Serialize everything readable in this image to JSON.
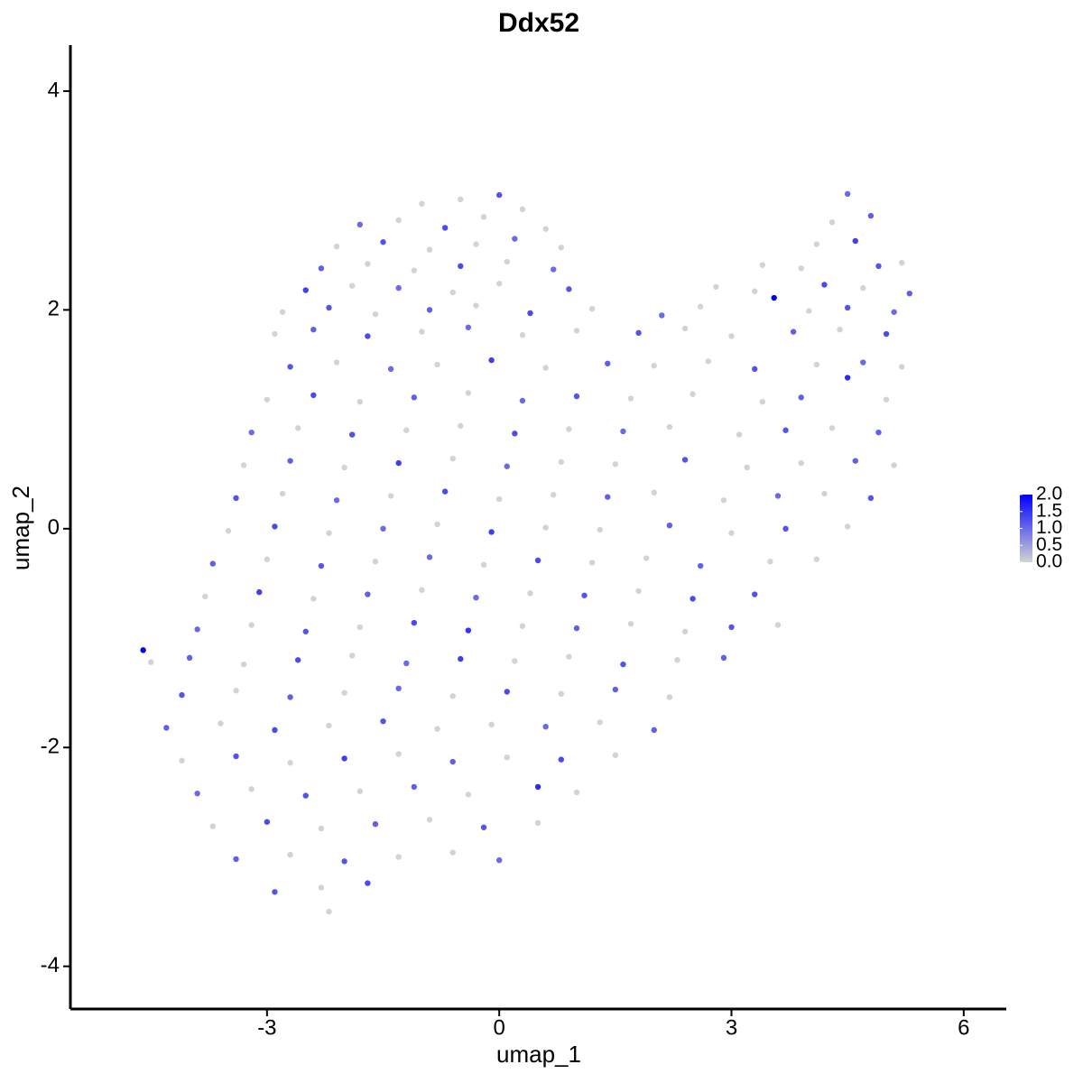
{
  "chart_data": {
    "type": "scatter",
    "title": "Ddx52",
    "x_label": "umap_1",
    "y_label": "umap_2",
    "xlim": [
      -5.54,
      6.55
    ],
    "xticks": [
      -3,
      0,
      3,
      6
    ],
    "ylim": [
      -4.39,
      4.42
    ],
    "yticks": [
      -4,
      -2,
      0,
      2,
      4
    ],
    "low_color": "#d3d3d3",
    "high_color": "#0000ff",
    "colorlim": [
      0,
      2.0
    ],
    "colorticks": [
      {
        "value": 0,
        "label": "0.0"
      },
      0.5,
      {
        "value": 1,
        "label": "1.0"
      },
      1.5,
      {
        "value": 2,
        "label": "2.0"
      }
    ],
    "x": [
      -1.0,
      -0.5,
      0.0,
      0.3,
      4.5,
      -1.8,
      -1.3,
      -0.7,
      -0.2,
      0.6,
      4.3,
      4.8,
      -2.1,
      -1.5,
      -0.9,
      -0.3,
      0.2,
      0.8,
      4.1,
      4.6,
      -2.3,
      -1.7,
      -1.1,
      -0.5,
      0.1,
      0.7,
      3.4,
      3.9,
      4.9,
      5.2,
      -2.5,
      -1.9,
      -1.3,
      -0.6,
      0.0,
      0.9,
      2.8,
      3.3,
      4.2,
      4.7,
      5.3,
      -2.8,
      -2.2,
      -1.6,
      -0.9,
      -0.3,
      0.4,
      1.2,
      2.1,
      2.6,
      4.0,
      4.5,
      5.1,
      3.55,
      -2.9,
      -2.4,
      -1.7,
      -1.0,
      -0.4,
      0.3,
      1.0,
      1.8,
      2.4,
      3.0,
      3.8,
      4.4,
      5.0,
      -2.7,
      -2.1,
      -1.4,
      -0.8,
      -0.1,
      0.6,
      1.4,
      2.0,
      2.7,
      3.3,
      4.1,
      4.7,
      5.2,
      -3.0,
      -2.4,
      -1.8,
      -1.1,
      -0.4,
      0.3,
      1.0,
      1.7,
      2.5,
      3.4,
      3.9,
      4.5,
      5.0,
      -3.2,
      -2.6,
      -1.9,
      -1.2,
      -0.5,
      0.2,
      0.9,
      1.6,
      2.2,
      3.1,
      3.7,
      4.3,
      4.9,
      -3.3,
      -2.7,
      -2.0,
      -1.3,
      -0.6,
      0.1,
      0.8,
      1.5,
      2.4,
      3.2,
      3.9,
      4.6,
      5.1,
      -3.4,
      -2.8,
      -2.1,
      -1.4,
      -0.7,
      0.0,
      0.7,
      1.4,
      2.0,
      2.9,
      3.6,
      4.2,
      4.8,
      -3.5,
      -2.9,
      -2.2,
      -1.5,
      -0.8,
      -0.1,
      0.6,
      1.3,
      2.2,
      3.0,
      3.7,
      4.5,
      -3.7,
      -3.0,
      -2.3,
      -1.6,
      -0.9,
      -0.2,
      0.5,
      1.2,
      1.9,
      2.6,
      3.5,
      4.1,
      -3.8,
      -3.1,
      -2.4,
      -1.7,
      -1.0,
      -0.3,
      0.4,
      1.1,
      1.8,
      2.5,
      3.3,
      -3.9,
      -3.2,
      -2.5,
      -1.8,
      -1.1,
      -0.4,
      0.3,
      1.0,
      1.7,
      2.4,
      3.0,
      3.6,
      -4.5,
      -4.0,
      -3.3,
      -2.6,
      -1.9,
      -1.2,
      -0.5,
      0.2,
      0.9,
      1.6,
      2.3,
      2.9,
      -4.6,
      -4.1,
      -3.4,
      -2.7,
      -2.0,
      -1.3,
      -0.6,
      0.1,
      0.8,
      1.5,
      2.2,
      -4.3,
      -3.6,
      -2.9,
      -2.2,
      -1.5,
      -0.8,
      -0.1,
      0.6,
      1.3,
      2.0,
      -4.1,
      -3.4,
      -2.7,
      -2.0,
      -1.3,
      -0.6,
      0.1,
      0.8,
      1.5,
      -3.9,
      -3.2,
      -2.5,
      -1.8,
      -1.1,
      -0.4,
      0.5,
      1.0,
      -3.7,
      -3.0,
      -2.3,
      -1.6,
      -0.9,
      -0.2,
      0.5,
      -3.4,
      -2.7,
      -2.0,
      -1.3,
      -0.6,
      0.0,
      -2.9,
      -2.3,
      -1.7,
      -2.2
    ],
    "y": [
      2.97,
      3.01,
      3.05,
      2.92,
      3.06,
      2.78,
      2.82,
      2.75,
      2.85,
      2.74,
      2.8,
      2.86,
      2.58,
      2.62,
      2.55,
      2.6,
      2.65,
      2.57,
      2.6,
      2.63,
      2.38,
      2.42,
      2.36,
      2.4,
      2.44,
      2.37,
      2.41,
      2.38,
      2.4,
      2.43,
      2.18,
      2.22,
      2.2,
      2.16,
      2.24,
      2.19,
      2.21,
      2.17,
      2.23,
      2.2,
      2.15,
      1.98,
      2.02,
      1.96,
      2.0,
      2.04,
      1.97,
      2.01,
      1.95,
      2.03,
      1.99,
      2.02,
      1.98,
      2.11,
      1.78,
      1.82,
      1.76,
      1.8,
      1.84,
      1.77,
      1.81,
      1.79,
      1.83,
      1.76,
      1.8,
      1.82,
      1.78,
      1.48,
      1.52,
      1.46,
      1.5,
      1.54,
      1.47,
      1.51,
      1.49,
      1.53,
      1.46,
      1.5,
      1.52,
      1.48,
      1.18,
      1.22,
      1.16,
      1.2,
      1.24,
      1.17,
      1.21,
      1.19,
      1.23,
      1.16,
      1.2,
      1.38,
      1.18,
      0.88,
      0.92,
      0.86,
      0.9,
      0.94,
      0.87,
      0.91,
      0.89,
      0.93,
      0.86,
      0.9,
      0.92,
      0.88,
      0.58,
      0.62,
      0.56,
      0.6,
      0.64,
      0.57,
      0.61,
      0.59,
      0.63,
      0.56,
      0.6,
      0.62,
      0.58,
      0.28,
      0.32,
      0.26,
      0.3,
      0.34,
      0.27,
      0.31,
      0.29,
      0.33,
      0.26,
      0.3,
      0.32,
      0.28,
      -0.02,
      0.02,
      -0.04,
      0.0,
      0.04,
      -0.03,
      0.01,
      -0.01,
      0.03,
      -0.04,
      0.0,
      0.02,
      -0.32,
      -0.28,
      -0.34,
      -0.3,
      -0.26,
      -0.33,
      -0.29,
      -0.31,
      -0.27,
      -0.34,
      -0.3,
      -0.28,
      -0.62,
      -0.58,
      -0.64,
      -0.6,
      -0.56,
      -0.63,
      -0.59,
      -0.61,
      -0.57,
      -0.64,
      -0.6,
      -0.92,
      -0.88,
      -0.94,
      -0.9,
      -0.86,
      -0.93,
      -0.89,
      -0.91,
      -0.87,
      -0.94,
      -0.9,
      -0.88,
      -1.22,
      -1.18,
      -1.24,
      -1.2,
      -1.16,
      -1.23,
      -1.19,
      -1.21,
      -1.17,
      -1.24,
      -1.2,
      -1.18,
      -1.11,
      -1.52,
      -1.48,
      -1.54,
      -1.5,
      -1.46,
      -1.53,
      -1.49,
      -1.51,
      -1.47,
      -1.54,
      -1.82,
      -1.78,
      -1.84,
      -1.8,
      -1.76,
      -1.83,
      -1.79,
      -1.81,
      -1.77,
      -1.84,
      -2.12,
      -2.08,
      -2.14,
      -2.1,
      -2.06,
      -2.13,
      -2.09,
      -2.11,
      -2.07,
      -2.42,
      -2.38,
      -2.44,
      -2.4,
      -2.36,
      -2.43,
      -2.36,
      -2.41,
      -2.72,
      -2.68,
      -2.74,
      -2.7,
      -2.66,
      -2.73,
      -2.69,
      -3.02,
      -2.98,
      -3.04,
      -3.0,
      -2.96,
      -3.03,
      -3.32,
      -3.28,
      -3.24,
      -3.5
    ],
    "expression": [
      0,
      0,
      1.2,
      0,
      1.0,
      1.0,
      0,
      1.3,
      0,
      0,
      0,
      1.1,
      0,
      1.2,
      0,
      0,
      1.0,
      0,
      0,
      1.4,
      1.1,
      0,
      0,
      1.3,
      0,
      1.0,
      0,
      0,
      1.2,
      0,
      1.4,
      0,
      1.0,
      0,
      0,
      1.2,
      0,
      0,
      1.3,
      0,
      1.1,
      0,
      1.2,
      0,
      1.1,
      0,
      1.3,
      0,
      1.0,
      0,
      0,
      1.2,
      1.0,
      2.0,
      0,
      1.1,
      1.3,
      0,
      1.0,
      0,
      0,
      1.2,
      0,
      0,
      1.1,
      0,
      1.3,
      1.2,
      0,
      1.0,
      0,
      1.4,
      0,
      1.1,
      0,
      0,
      1.2,
      0,
      1.0,
      0,
      0,
      1.3,
      0,
      1.1,
      0,
      1.0,
      1.2,
      0,
      0,
      0,
      1.1,
      1.6,
      0,
      1.0,
      0,
      1.2,
      0,
      0,
      1.3,
      0,
      1.0,
      0,
      0,
      1.2,
      0,
      1.1,
      0,
      1.1,
      0,
      1.4,
      0,
      1.0,
      0,
      0,
      1.2,
      0,
      0,
      1.1,
      0,
      1.2,
      0,
      1.0,
      0,
      1.3,
      0,
      0,
      1.1,
      0,
      0,
      1.0,
      0,
      1.2,
      0,
      1.3,
      0,
      1.0,
      0,
      1.4,
      0,
      0,
      1.1,
      0,
      1.2,
      0,
      1.1,
      0,
      1.2,
      0,
      1.0,
      0,
      1.3,
      0,
      0,
      1.1,
      0,
      0,
      0,
      1.4,
      0,
      1.1,
      0,
      1.0,
      0,
      1.2,
      0,
      1.3,
      1.2,
      1.0,
      0,
      1.2,
      0,
      1.3,
      1.5,
      0,
      1.1,
      0,
      0,
      1.2,
      0,
      0,
      1.1,
      0,
      1.3,
      0,
      1.0,
      1.4,
      0,
      0,
      1.2,
      0,
      1.1,
      2.0,
      1.2,
      0,
      1.1,
      0,
      1.0,
      0,
      1.3,
      0,
      1.1,
      0,
      1.1,
      0,
      1.3,
      0,
      1.2,
      0,
      0,
      1.0,
      0,
      1.1,
      0,
      1.2,
      0,
      1.4,
      0,
      1.1,
      0,
      1.3,
      0,
      1.0,
      0,
      1.2,
      0,
      1.1,
      0,
      1.6,
      0,
      0,
      1.3,
      0,
      1.1,
      0,
      1.2,
      0,
      1.1,
      0,
      1.2,
      0,
      0,
      1.0,
      1.2,
      0,
      1.3,
      0
    ]
  }
}
